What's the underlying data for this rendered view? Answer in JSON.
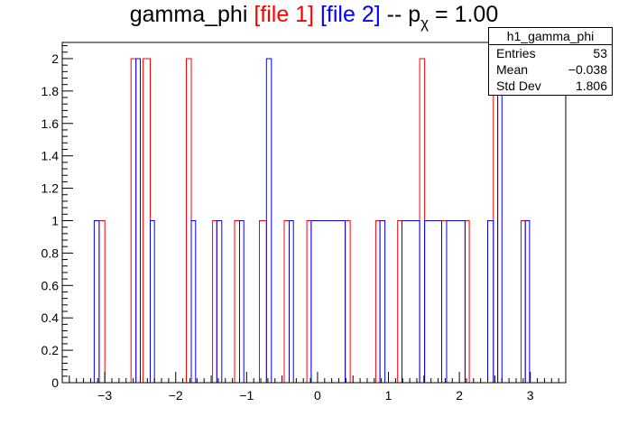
{
  "title": {
    "prefix": "gamma_phi ",
    "file1": "[file 1]",
    "file2": "[file 2]",
    "sep": " -- p",
    "sub": "χ",
    "suffix": " = 1.00"
  },
  "stats": {
    "name": "h1_gamma_phi",
    "rows": [
      {
        "label": "Entries",
        "value": "53"
      },
      {
        "label": "Mean",
        "value": "−0.038"
      },
      {
        "label": "Std Dev",
        "value": "1.806"
      }
    ]
  },
  "colors": {
    "file1": "#ff0000",
    "file2": "#0000ff"
  },
  "chart_data": {
    "type": "histogram-step",
    "xlim": [
      -3.6,
      3.5
    ],
    "ylim": [
      0,
      2.1
    ],
    "x_ticks": [
      -3,
      -2,
      -1,
      0,
      1,
      2,
      3
    ],
    "x_tick_labels": [
      "−3",
      "−2",
      "−1",
      "0",
      "1",
      "2",
      "3"
    ],
    "y_ticks": [
      0,
      0.2,
      0.4,
      0.6,
      0.8,
      1,
      1.2,
      1.4,
      1.6,
      1.8,
      2
    ],
    "y_tick_labels": [
      "0",
      "0.2",
      "0.4",
      "0.6",
      "0.8",
      "1",
      "1.2",
      "1.4",
      "1.6",
      "1.8",
      "2"
    ],
    "series": [
      {
        "name": "file 1",
        "color": "#ff0000",
        "bins": [
          [
            -3.08,
            -3.0,
            1
          ],
          [
            -2.63,
            -2.56,
            2
          ],
          [
            -2.46,
            -2.36,
            2
          ],
          [
            -1.85,
            -1.78,
            2
          ],
          [
            -1.48,
            -1.42,
            1
          ],
          [
            -1.17,
            -1.1,
            1
          ],
          [
            -0.82,
            -0.72,
            1
          ],
          [
            -0.47,
            -0.4,
            1
          ],
          [
            -0.15,
            -0.09,
            1
          ],
          [
            0.39,
            0.46,
            1
          ],
          [
            0.82,
            0.88,
            1
          ],
          [
            1.13,
            1.19,
            1
          ],
          [
            1.44,
            1.51,
            2
          ],
          [
            1.75,
            1.82,
            1
          ],
          [
            2.08,
            2.14,
            1
          ],
          [
            2.48,
            2.54,
            2
          ],
          [
            2.87,
            2.93,
            1
          ]
        ]
      },
      {
        "name": "file 2",
        "color": "#0000ff",
        "bins": [
          [
            -3.15,
            -3.08,
            1
          ],
          [
            -2.56,
            -2.5,
            2
          ],
          [
            -2.36,
            -2.3,
            1
          ],
          [
            -1.78,
            -1.72,
            1
          ],
          [
            -1.42,
            -1.35,
            1
          ],
          [
            -1.1,
            -1.04,
            1
          ],
          [
            -0.72,
            -0.65,
            2
          ],
          [
            -0.4,
            -0.34,
            1
          ],
          [
            -0.09,
            0.39,
            1
          ],
          [
            0.88,
            0.95,
            1
          ],
          [
            1.19,
            1.44,
            1
          ],
          [
            1.51,
            1.75,
            1
          ],
          [
            1.82,
            2.08,
            1
          ],
          [
            2.4,
            2.48,
            1
          ],
          [
            2.54,
            2.6,
            2
          ],
          [
            2.93,
            2.99,
            1
          ]
        ]
      }
    ],
    "stats_box": "top-right"
  }
}
